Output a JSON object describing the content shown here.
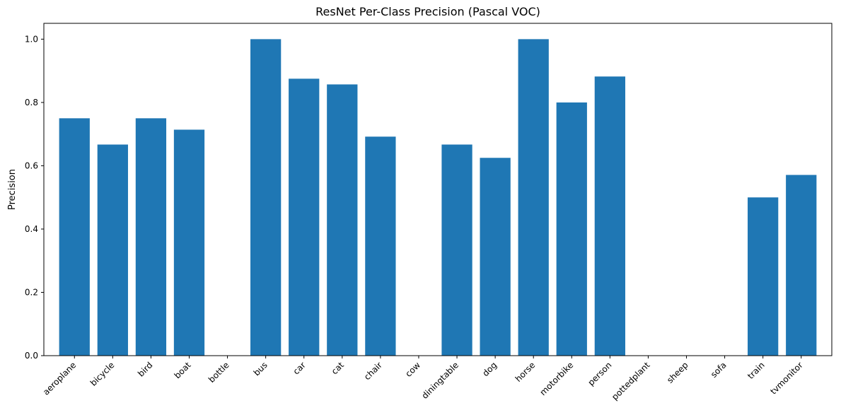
{
  "chart_data": {
    "type": "bar",
    "title": "ResNet Per-Class Precision (Pascal VOC)",
    "xlabel": "",
    "ylabel": "Precision",
    "categories": [
      "aeroplane",
      "bicycle",
      "bird",
      "boat",
      "bottle",
      "bus",
      "car",
      "cat",
      "chair",
      "cow",
      "diningtable",
      "dog",
      "horse",
      "motorbike",
      "person",
      "pottedplant",
      "sheep",
      "sofa",
      "train",
      "tvmonitor"
    ],
    "values": [
      0.75,
      0.667,
      0.75,
      0.714,
      0.0,
      1.0,
      0.875,
      0.857,
      0.692,
      0.0,
      0.667,
      0.625,
      1.0,
      0.8,
      0.882,
      0.0,
      0.0,
      0.0,
      0.5,
      0.571
    ],
    "ylim": [
      0,
      1.05
    ],
    "yticks": [
      "0.0",
      "0.2",
      "0.4",
      "0.6",
      "0.8",
      "1.0"
    ],
    "bar_color": "#1f77b4",
    "grid": false,
    "legend": "none"
  }
}
